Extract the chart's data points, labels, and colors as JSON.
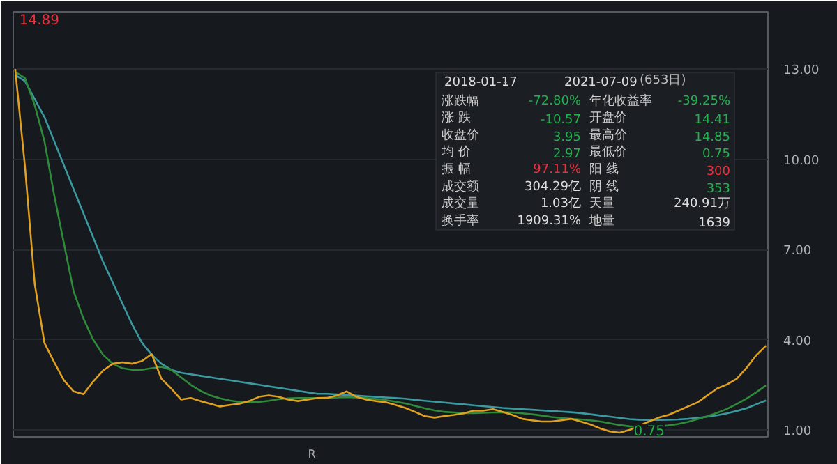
{
  "chart_data": [
    {
      "type": "line",
      "categories": [
        null,
        null,
        null,
        null,
        null,
        null,
        null,
        null,
        null,
        null,
        null,
        null,
        null,
        null,
        null,
        null,
        null,
        null,
        null,
        null,
        null,
        null,
        null,
        null,
        null,
        null,
        null,
        null,
        null,
        null,
        null,
        null,
        null,
        null,
        null,
        null,
        null,
        null,
        null,
        null,
        null,
        null,
        null,
        null,
        null,
        null,
        null,
        null,
        null,
        null,
        null,
        null,
        null,
        null,
        null,
        null,
        null,
        null,
        null,
        null,
        null,
        null,
        null,
        null,
        null,
        null,
        null,
        null,
        null,
        null,
        null,
        null,
        null,
        null,
        null,
        null,
        null,
        null
      ],
      "series": [
        {
          "color": "#3a9aa0",
          "values": [
            12.8,
            12.6,
            12.0,
            11.4,
            10.6,
            9.8,
            9.0,
            8.2,
            7.4,
            6.6,
            5.9,
            5.2,
            4.5,
            3.9,
            3.5,
            3.2,
            3.0,
            2.9,
            2.85,
            2.8,
            2.75,
            2.7,
            2.65,
            2.6,
            2.55,
            2.5,
            2.45,
            2.4,
            2.35,
            2.3,
            2.25,
            2.2,
            2.2,
            2.18,
            2.16,
            2.14,
            2.12,
            2.1,
            2.08,
            2.06,
            2.04,
            2.0,
            1.97,
            1.94,
            1.91,
            1.88,
            1.85,
            1.82,
            1.79,
            1.76,
            1.73,
            1.71,
            1.69,
            1.67,
            1.65,
            1.63,
            1.61,
            1.59,
            1.56,
            1.52,
            1.48,
            1.44,
            1.4,
            1.36,
            1.34,
            1.33,
            1.33,
            1.34,
            1.35,
            1.37,
            1.4,
            1.44,
            1.49,
            1.55,
            1.63,
            1.72,
            1.85,
            1.98
          ]
        },
        {
          "color": "#2f8a3a",
          "values": [
            12.9,
            12.7,
            11.8,
            10.6,
            8.8,
            7.2,
            5.6,
            4.7,
            4.0,
            3.5,
            3.2,
            3.05,
            3.0,
            3.0,
            3.05,
            3.1,
            3.0,
            2.75,
            2.5,
            2.3,
            2.15,
            2.05,
            1.98,
            1.93,
            1.92,
            1.93,
            1.97,
            2.02,
            2.05,
            2.06,
            2.06,
            2.06,
            2.07,
            2.08,
            2.09,
            2.08,
            2.06,
            2.03,
            1.99,
            1.94,
            1.88,
            1.8,
            1.72,
            1.65,
            1.6,
            1.58,
            1.56,
            1.56,
            1.57,
            1.58,
            1.59,
            1.58,
            1.55,
            1.52,
            1.48,
            1.43,
            1.4,
            1.37,
            1.35,
            1.32,
            1.28,
            1.22,
            1.16,
            1.12,
            1.1,
            1.1,
            1.12,
            1.15,
            1.2,
            1.27,
            1.36,
            1.46,
            1.57,
            1.7,
            1.86,
            2.04,
            2.25,
            2.48
          ]
        },
        {
          "color": "#e0a020",
          "values": [
            13.0,
            9.76,
            5.86,
            3.89,
            3.25,
            2.65,
            2.28,
            2.19,
            2.61,
            2.97,
            3.2,
            3.25,
            3.2,
            3.29,
            3.52,
            2.7,
            2.38,
            2.01,
            2.06,
            1.96,
            1.87,
            1.78,
            1.83,
            1.87,
            1.96,
            2.1,
            2.15,
            2.1,
            2.01,
            1.96,
            2.01,
            2.06,
            2.06,
            2.15,
            2.28,
            2.1,
            2.01,
            1.96,
            1.92,
            1.83,
            1.73,
            1.6,
            1.46,
            1.41,
            1.46,
            1.5,
            1.55,
            1.64,
            1.64,
            1.69,
            1.6,
            1.5,
            1.37,
            1.32,
            1.28,
            1.28,
            1.32,
            1.37,
            1.28,
            1.18,
            1.05,
            0.95,
            0.91,
            1.0,
            1.14,
            1.28,
            1.41,
            1.5,
            1.64,
            1.78,
            1.92,
            2.15,
            2.38,
            2.51,
            2.7,
            3.06,
            3.48,
            3.8
          ]
        }
      ],
      "ylim": [
        0.77,
        14.9
      ],
      "yticks": [
        {
          "value": 1,
          "label": "1.00"
        },
        {
          "value": 4,
          "label": "4.00"
        },
        {
          "value": 7,
          "label": "7.00"
        },
        {
          "value": 10,
          "label": "10.00"
        },
        {
          "value": 13,
          "label": "13.00"
        }
      ],
      "grid": "y",
      "tick_labels": "y",
      "annotations": [
        "14.89",
        "0.75",
        "R"
      ]
    },
    {
      "type": "other",
      "annotations": [
        "2018-01-17",
        "-",
        "2021-07-09",
        "(653日)",
        "涨跌幅",
        "-72.80%",
        "年化收益率",
        "-39.25%",
        "涨  跌",
        "-10.57",
        "开盘价",
        "14.41",
        "收盘价",
        "3.95",
        "最高价",
        "14.85",
        "均  价",
        "2.97",
        "最低价",
        "0.75",
        "振  幅",
        "97.11%",
        "阳  线",
        "300",
        "成交额",
        "304.29亿",
        "阴  线",
        "353",
        "成交量",
        "1.03亿",
        "天量",
        "240.91万",
        "换手率",
        "1909.31%",
        "地量",
        "1639"
      ],
      "colors": [
        "#dddddd",
        "#aaaaaa",
        "#dddddd",
        "#bbbbbb",
        "#cccccc",
        "#22b14c",
        "#cccccc",
        "#22b14c",
        "#cccccc",
        "#22b14c",
        "#cccccc",
        "#22b14c",
        "#cccccc",
        "#22b14c",
        "#cccccc",
        "#22b14c",
        "#cccccc",
        "#22b14c",
        "#cccccc",
        "#22b14c",
        "#cccccc",
        "#e8323c",
        "#cccccc",
        "#e8323c",
        "#cccccc",
        "#dddddd",
        "#cccccc",
        "#22b14c",
        "#cccccc",
        "#dddddd",
        "#cccccc",
        "#dddddd",
        "#cccccc",
        "#dddddd",
        "#cccccc",
        "#dddddd"
      ]
    }
  ]
}
